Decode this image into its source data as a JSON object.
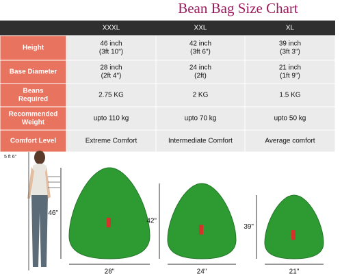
{
  "title": "Bean Bag Size Chart",
  "table": {
    "columns": [
      "XXXL",
      "XXL",
      "XL"
    ],
    "rows": [
      {
        "label": [
          "Height"
        ],
        "cells": [
          [
            "46 inch",
            "(3ft 10\")"
          ],
          [
            "42 inch",
            "(3ft 6\")"
          ],
          [
            "39 inch",
            "(3ft 3\")"
          ]
        ]
      },
      {
        "label": [
          "Base Diameter"
        ],
        "cells": [
          [
            "28 inch",
            "(2ft 4\")"
          ],
          [
            "24 inch",
            "(2ft)"
          ],
          [
            "21 inch",
            "(1ft 9\")"
          ]
        ]
      },
      {
        "label": [
          "Beans",
          "Required"
        ],
        "cells": [
          [
            "2.75 KG"
          ],
          [
            "2 KG"
          ],
          [
            "1.5 KG"
          ]
        ]
      },
      {
        "label": [
          "Recommended",
          "Weight"
        ],
        "cells": [
          [
            "upto 110 kg"
          ],
          [
            "upto 70 kg"
          ],
          [
            "upto 50 kg"
          ]
        ]
      },
      {
        "label": [
          "Comfort Level"
        ],
        "cells": [
          [
            "Extreme Comfort"
          ],
          [
            "Intermediate Comfort"
          ],
          [
            "Average comfort"
          ]
        ]
      }
    ]
  },
  "illustration": {
    "person_height": "5 ft 6\"",
    "bags": [
      {
        "height": "46\"",
        "width": "28\""
      },
      {
        "height": "42\"",
        "width": "24\""
      },
      {
        "height": "39\"",
        "width": "21\""
      }
    ]
  }
}
